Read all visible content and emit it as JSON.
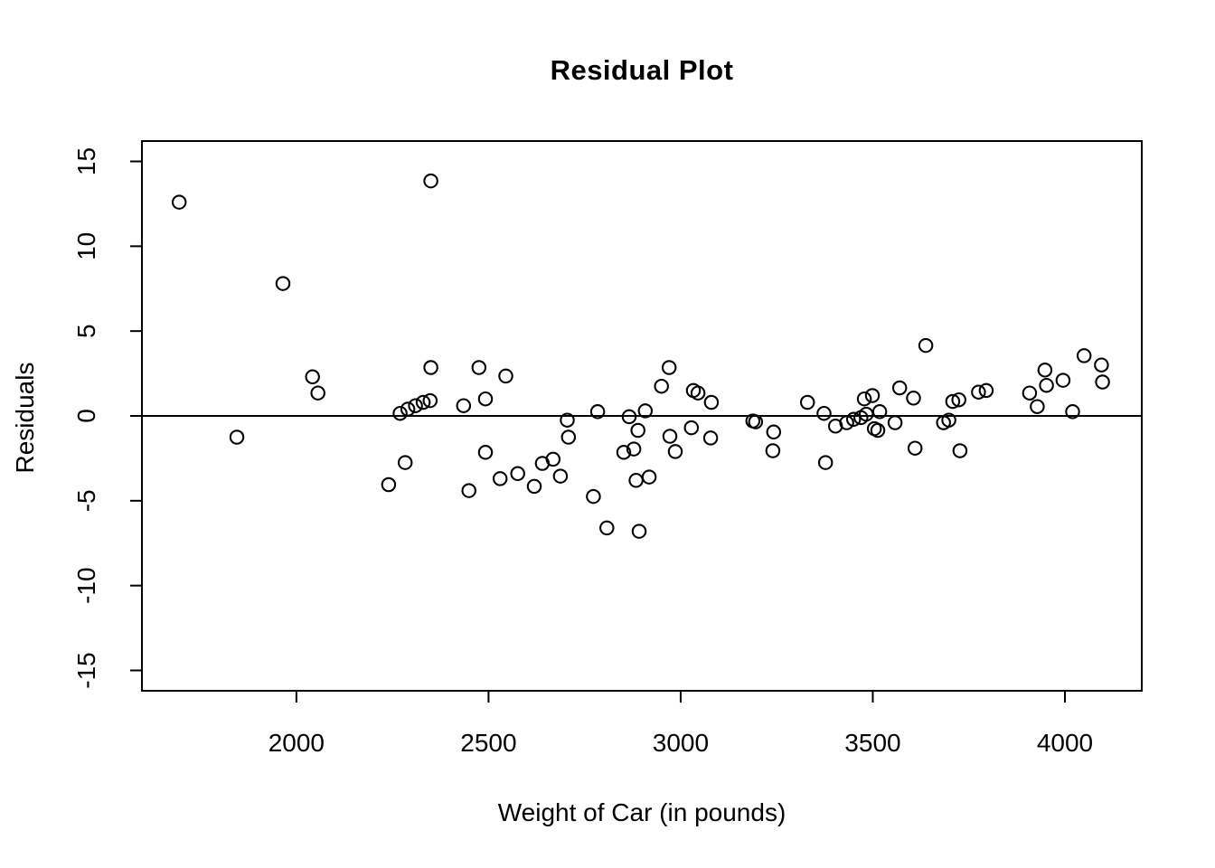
{
  "figure": {
    "title": "Residual Plot",
    "x_axis_label": "Weight of Car (in pounds)",
    "y_axis_label": "Residuals"
  },
  "chart_data": {
    "type": "scatter",
    "title": "Residual Plot",
    "xlabel": "Weight of Car (in pounds)",
    "ylabel": "Residuals",
    "x_ticks": [
      2000,
      2500,
      3000,
      3500,
      4000
    ],
    "y_ticks": [
      -15,
      -10,
      -5,
      0,
      5,
      10,
      15
    ],
    "xlim": [
      1598,
      4200
    ],
    "ylim": [
      -16.2,
      16.2
    ],
    "grid": false,
    "legend": "none",
    "reference_line_y": 0,
    "marker": {
      "shape": "open-circle",
      "stroke_color": "#000000",
      "fill": "none"
    },
    "axis_color": "#000000",
    "background_color": "#ffffff",
    "points": [
      [
        1695,
        12.6
      ],
      [
        1845,
        -1.25
      ],
      [
        1965,
        7.8
      ],
      [
        2042,
        2.3
      ],
      [
        2056,
        1.35
      ],
      [
        2240,
        -4.05
      ],
      [
        2270,
        0.15
      ],
      [
        2283,
        -2.75
      ],
      [
        2290,
        0.4
      ],
      [
        2310,
        0.6
      ],
      [
        2330,
        0.8
      ],
      [
        2348,
        0.9
      ],
      [
        2350,
        13.85
      ],
      [
        2350,
        2.85
      ],
      [
        2435,
        0.6
      ],
      [
        2449,
        -4.4
      ],
      [
        2475,
        2.85
      ],
      [
        2492,
        1.0
      ],
      [
        2492,
        -2.15
      ],
      [
        2530,
        -3.7
      ],
      [
        2545,
        2.35
      ],
      [
        2576,
        -3.4
      ],
      [
        2619,
        -4.15
      ],
      [
        2640,
        -2.8
      ],
      [
        2668,
        -2.55
      ],
      [
        2687,
        -3.55
      ],
      [
        2705,
        -0.25
      ],
      [
        2708,
        -1.25
      ],
      [
        2773,
        -4.75
      ],
      [
        2784,
        0.25
      ],
      [
        2808,
        -6.6
      ],
      [
        2852,
        -2.15
      ],
      [
        2866,
        -0.05
      ],
      [
        2878,
        -1.95
      ],
      [
        2884,
        -3.8
      ],
      [
        2889,
        -0.85
      ],
      [
        2892,
        -6.8
      ],
      [
        2908,
        0.3
      ],
      [
        2918,
        -3.6
      ],
      [
        2950,
        1.75
      ],
      [
        2970,
        2.85
      ],
      [
        2972,
        -1.2
      ],
      [
        2986,
        -2.1
      ],
      [
        3028,
        -0.7
      ],
      [
        3033,
        1.5
      ],
      [
        3045,
        1.35
      ],
      [
        3078,
        -1.3
      ],
      [
        3080,
        0.8
      ],
      [
        3188,
        -0.3
      ],
      [
        3195,
        -0.35
      ],
      [
        3240,
        -2.05
      ],
      [
        3242,
        -0.95
      ],
      [
        3330,
        0.8
      ],
      [
        3373,
        0.15
      ],
      [
        3377,
        -2.75
      ],
      [
        3403,
        -0.6
      ],
      [
        3432,
        -0.4
      ],
      [
        3450,
        -0.2
      ],
      [
        3469,
        -0.1
      ],
      [
        3483,
        0.1
      ],
      [
        3478,
        1.0
      ],
      [
        3499,
        1.2
      ],
      [
        3504,
        -0.75
      ],
      [
        3513,
        -0.85
      ],
      [
        3518,
        0.25
      ],
      [
        3558,
        -0.4
      ],
      [
        3570,
        1.65
      ],
      [
        3606,
        1.05
      ],
      [
        3610,
        -1.9
      ],
      [
        3638,
        4.15
      ],
      [
        3684,
        -0.4
      ],
      [
        3698,
        -0.25
      ],
      [
        3708,
        0.85
      ],
      [
        3724,
        0.95
      ],
      [
        3727,
        -2.05
      ],
      [
        3775,
        1.4
      ],
      [
        3795,
        1.5
      ],
      [
        3908,
        1.35
      ],
      [
        3928,
        0.55
      ],
      [
        3948,
        2.7
      ],
      [
        3952,
        1.8
      ],
      [
        3995,
        2.1
      ],
      [
        4020,
        0.25
      ],
      [
        4050,
        3.55
      ],
      [
        4095,
        3.0
      ],
      [
        4098,
        2.0
      ]
    ]
  }
}
